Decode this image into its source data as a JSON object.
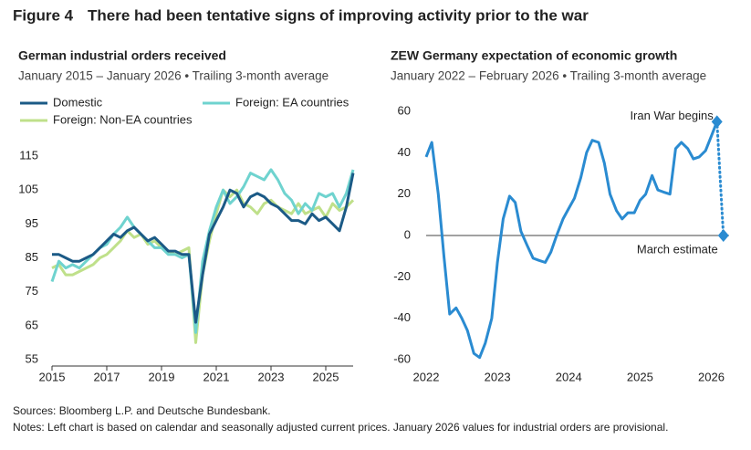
{
  "figure_label": "Figure 4",
  "title": "There had been tentative signs of improving activity prior to the war",
  "sources": "Sources: Bloomberg L.P. and Deutsche Bundesbank.",
  "notes": "Notes: Left chart is based on calendar and seasonally adjusted current prices. January 2026 values for industrial orders are provisional.",
  "chart_data": [
    {
      "type": "line",
      "title": "German industrial orders received",
      "subtitle": "January 2015 – January 2026 • Trailing 3-month average",
      "x": [
        2015,
        2015.25,
        2015.5,
        2015.75,
        2016,
        2016.25,
        2016.5,
        2016.75,
        2017,
        2017.25,
        2017.5,
        2017.75,
        2018,
        2018.25,
        2018.5,
        2018.75,
        2019,
        2019.25,
        2019.5,
        2019.75,
        2020,
        2020.25,
        2020.5,
        2020.75,
        2021,
        2021.25,
        2021.5,
        2021.75,
        2022,
        2022.25,
        2022.5,
        2022.75,
        2023,
        2023.25,
        2023.5,
        2023.75,
        2024,
        2024.25,
        2024.5,
        2024.75,
        2025,
        2025.25,
        2025.5,
        2025.75,
        2026
      ],
      "series": [
        {
          "name": "Domestic",
          "color": "#1b5a86",
          "values": [
            86,
            86,
            85,
            84,
            84,
            85,
            86,
            88,
            90,
            92,
            91,
            93,
            94,
            92,
            90,
            91,
            89,
            87,
            87,
            86,
            86,
            66,
            80,
            92,
            96,
            100,
            105,
            104,
            100,
            103,
            104,
            103,
            101,
            100,
            98,
            96,
            96,
            95,
            98,
            96,
            97,
            95,
            93,
            100,
            110
          ]
        },
        {
          "name": "Foreign: EA countries",
          "color": "#6fd3cf",
          "values": [
            78,
            84,
            82,
            83,
            82,
            84,
            86,
            88,
            89,
            92,
            94,
            97,
            94,
            92,
            90,
            88,
            88,
            86,
            86,
            85,
            86,
            63,
            84,
            93,
            100,
            105,
            101,
            103,
            106,
            110,
            109,
            108,
            111,
            108,
            104,
            102,
            98,
            101,
            99,
            104,
            103,
            104,
            100,
            104,
            111
          ]
        },
        {
          "name": "Foreign: Non-EA countries",
          "color": "#bfe08a",
          "values": [
            82,
            83,
            80,
            80,
            81,
            82,
            83,
            85,
            86,
            88,
            90,
            93,
            91,
            92,
            89,
            90,
            88,
            87,
            86,
            87,
            88,
            60,
            80,
            90,
            98,
            105,
            103,
            105,
            101,
            100,
            98,
            101,
            102,
            100,
            99,
            98,
            101,
            98,
            99,
            100,
            97,
            101,
            99,
            100,
            102
          ]
        }
      ],
      "xlim": [
        2015,
        2026
      ],
      "xticks": [
        2015,
        2017,
        2019,
        2021,
        2023,
        2025
      ],
      "ylim": [
        55,
        115
      ],
      "yticks": [
        55,
        65,
        75,
        85,
        95,
        105,
        115
      ]
    },
    {
      "type": "line",
      "title": "ZEW Germany expectation of economic growth",
      "subtitle": "January 2022 – February 2026 • Trailing 3-month average",
      "x": [
        2022.0,
        2022.08,
        2022.17,
        2022.25,
        2022.33,
        2022.42,
        2022.5,
        2022.58,
        2022.67,
        2022.75,
        2022.83,
        2022.92,
        2023.0,
        2023.08,
        2023.17,
        2023.25,
        2023.33,
        2023.42,
        2023.5,
        2023.58,
        2023.67,
        2023.75,
        2023.83,
        2023.92,
        2024.0,
        2024.08,
        2024.17,
        2024.25,
        2024.33,
        2024.42,
        2024.5,
        2024.58,
        2024.67,
        2024.75,
        2024.83,
        2024.92,
        2025.0,
        2025.08,
        2025.17,
        2025.25,
        2025.33,
        2025.42,
        2025.5,
        2025.58,
        2025.67,
        2025.75,
        2025.83,
        2025.92,
        2026.0,
        2026.08
      ],
      "series": [
        {
          "color": "#2a8bd1",
          "values": [
            38,
            45,
            20,
            -10,
            -38,
            -35,
            -40,
            -46,
            -57,
            -59,
            -52,
            -40,
            -13,
            8,
            19,
            16,
            2,
            -5,
            -11,
            -12,
            -13,
            -8,
            0,
            8,
            13,
            18,
            28,
            40,
            46,
            45,
            35,
            20,
            12,
            8,
            11,
            11,
            17,
            20,
            29,
            22,
            21,
            20,
            42,
            45,
            42,
            37,
            38,
            41,
            48,
            55
          ]
        }
      ],
      "end_annotation": "Iran War begins",
      "estimate": {
        "x": 2026.17,
        "value": 0,
        "label": "March estimate"
      },
      "zero_line": true,
      "xlim": [
        2022,
        2026.25
      ],
      "xticks": [
        2022,
        2023,
        2024,
        2025,
        2026
      ],
      "ylim": [
        -60,
        60
      ],
      "yticks": [
        -60,
        -40,
        -20,
        0,
        20,
        40,
        60
      ]
    }
  ]
}
